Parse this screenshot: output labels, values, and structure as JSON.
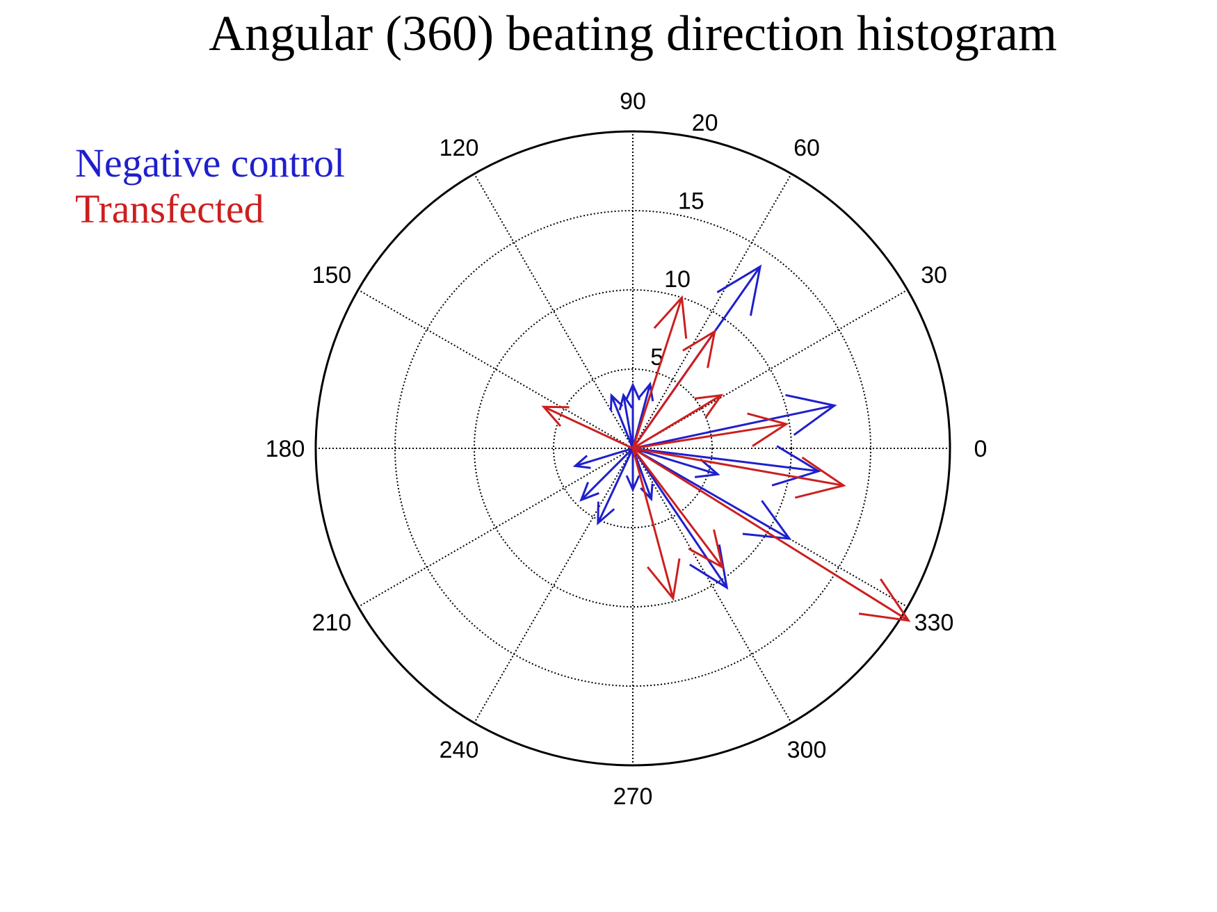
{
  "chart_data": {
    "type": "polar-compass",
    "title": "Angular (360) beating direction histogram",
    "rmax": 20,
    "radial_ticks": [
      5,
      10,
      15,
      20
    ],
    "angle_ticks": [
      0,
      30,
      60,
      90,
      120,
      150,
      180,
      210,
      240,
      270,
      300,
      330
    ],
    "legend": [
      {
        "label": "Negative control",
        "color": "#1f1fcc"
      },
      {
        "label": "Transfected",
        "color": "#cc1f1f"
      }
    ],
    "series": [
      {
        "name": "Negative control",
        "color": "#1f1fcc",
        "vectors": [
          {
            "angle": 55,
            "magnitude": 14.0
          },
          {
            "angle": 12,
            "magnitude": 13.0
          },
          {
            "angle": 353,
            "magnitude": 11.8
          },
          {
            "angle": 330,
            "magnitude": 11.4
          },
          {
            "angle": 304,
            "magnitude": 10.6
          },
          {
            "angle": 343,
            "magnitude": 5.6
          },
          {
            "angle": 75,
            "magnitude": 4.2
          },
          {
            "angle": 90,
            "magnitude": 4.0
          },
          {
            "angle": 100,
            "magnitude": 3.4
          },
          {
            "angle": 112,
            "magnitude": 3.6
          },
          {
            "angle": 197,
            "magnitude": 3.8
          },
          {
            "angle": 225,
            "magnitude": 4.6
          },
          {
            "angle": 245,
            "magnitude": 5.2
          },
          {
            "angle": 270,
            "magnitude": 2.6
          },
          {
            "angle": 290,
            "magnitude": 3.4
          }
        ]
      },
      {
        "name": "Transfected",
        "color": "#cc1f1f",
        "vectors": [
          {
            "angle": 328,
            "magnitude": 20.5
          },
          {
            "angle": 350,
            "magnitude": 13.5
          },
          {
            "angle": 9,
            "magnitude": 9.8
          },
          {
            "angle": 55,
            "magnitude": 9.0
          },
          {
            "angle": 72,
            "magnitude": 10.0
          },
          {
            "angle": 31,
            "magnitude": 6.5
          },
          {
            "angle": 155,
            "magnitude": 6.2
          },
          {
            "angle": 285,
            "magnitude": 9.8
          },
          {
            "angle": 307,
            "magnitude": 9.4
          }
        ]
      }
    ]
  }
}
